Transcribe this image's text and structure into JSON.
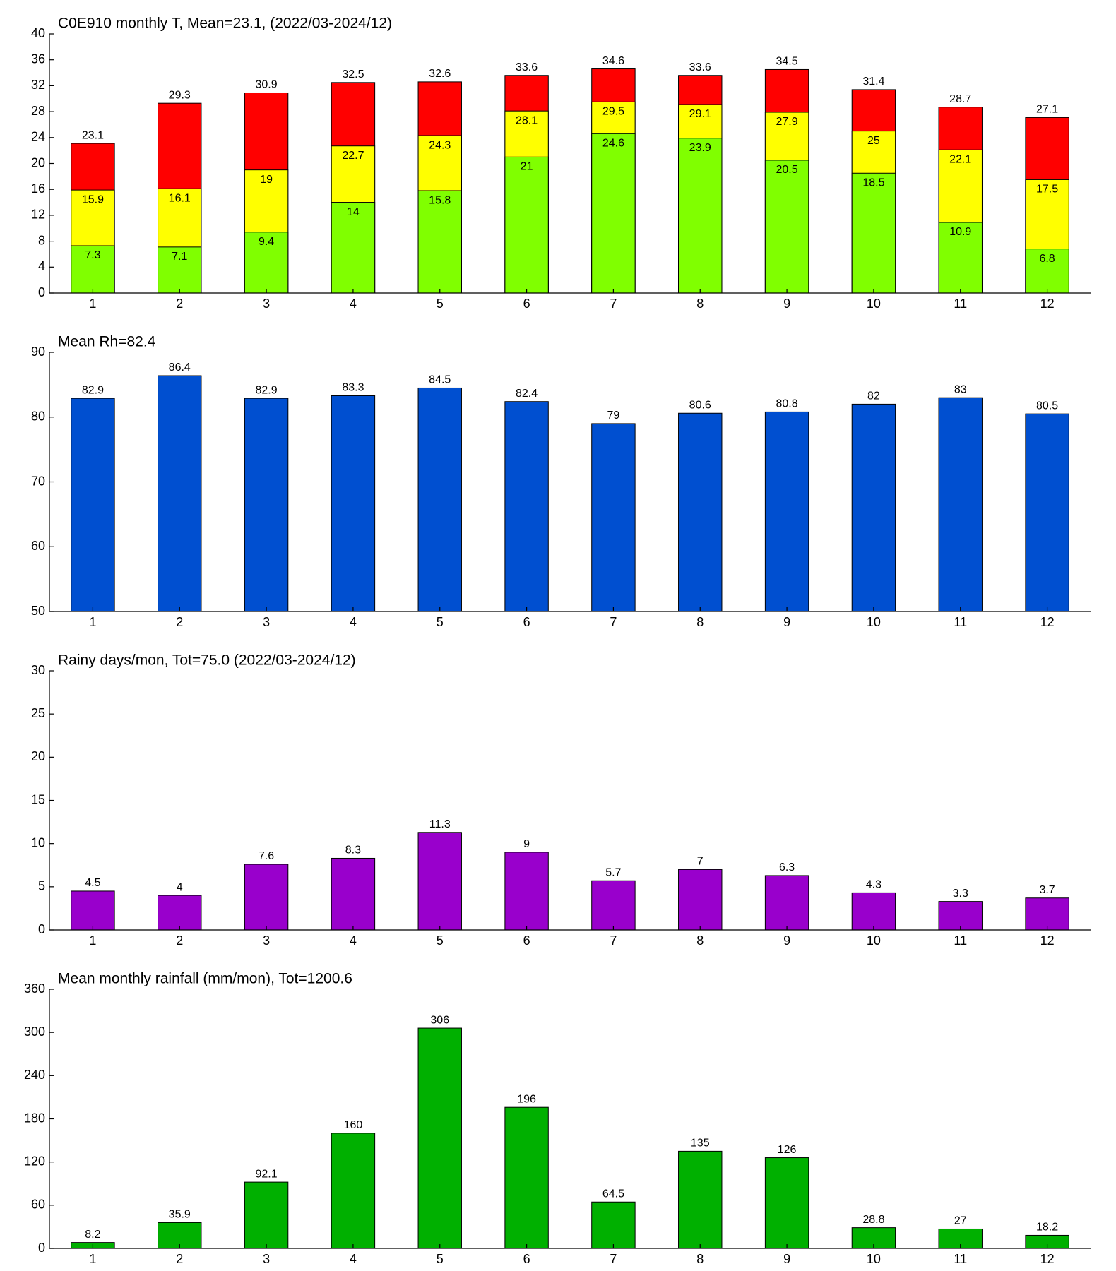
{
  "chart_data": [
    {
      "type": "bar",
      "title": "C0E910 monthly T, Mean=23.1, (2022/03-2024/12)",
      "categories": [
        "1",
        "2",
        "3",
        "4",
        "5",
        "6",
        "7",
        "8",
        "9",
        "10",
        "11",
        "12"
      ],
      "series": [
        {
          "color": "#ff0000",
          "values": [
            23.1,
            29.3,
            30.9,
            32.5,
            32.6,
            33.6,
            34.6,
            33.6,
            34.5,
            31.4,
            28.7,
            27.1
          ]
        },
        {
          "color": "#ffff00",
          "values": [
            15.9,
            16.1,
            19,
            22.7,
            24.3,
            28.1,
            29.5,
            29.1,
            27.9,
            25,
            22.1,
            17.5
          ]
        },
        {
          "color": "#80ff00",
          "values": [
            7.3,
            7.1,
            9.4,
            14,
            15.8,
            21,
            24.6,
            23.9,
            20.5,
            18.5,
            10.9,
            6.8
          ]
        }
      ],
      "ylim": [
        0,
        40
      ],
      "yticks": [
        0,
        4,
        8,
        12,
        16,
        20,
        24,
        28,
        32,
        36,
        40
      ]
    },
    {
      "type": "bar",
      "title": "Mean Rh=82.4",
      "categories": [
        "1",
        "2",
        "3",
        "4",
        "5",
        "6",
        "7",
        "8",
        "9",
        "10",
        "11",
        "12"
      ],
      "values": [
        82.9,
        86.4,
        82.9,
        83.3,
        84.5,
        82.4,
        79,
        80.6,
        80.8,
        82,
        83,
        80.5
      ],
      "color": "#004fd0",
      "ylim": [
        50,
        90
      ],
      "yticks": [
        50,
        60,
        70,
        80,
        90
      ]
    },
    {
      "type": "bar",
      "title": "Rainy days/mon, Tot=75.0 (2022/03-2024/12)",
      "categories": [
        "1",
        "2",
        "3",
        "4",
        "5",
        "6",
        "7",
        "8",
        "9",
        "10",
        "11",
        "12"
      ],
      "values": [
        4.5,
        4,
        7.6,
        8.3,
        11.3,
        9,
        5.7,
        7,
        6.3,
        4.3,
        3.3,
        3.7
      ],
      "color": "#9900cc",
      "ylim": [
        0,
        30
      ],
      "yticks": [
        0,
        5,
        10,
        15,
        20,
        25,
        30
      ]
    },
    {
      "type": "bar",
      "title": "Mean monthly rainfall (mm/mon), Tot=1200.6",
      "categories": [
        "1",
        "2",
        "3",
        "4",
        "5",
        "6",
        "7",
        "8",
        "9",
        "10",
        "11",
        "12"
      ],
      "values": [
        8.2,
        35.9,
        92.1,
        160,
        306,
        196,
        64.5,
        135,
        126,
        28.8,
        27,
        18.2
      ],
      "color": "#00b000",
      "ylim": [
        0,
        360
      ],
      "yticks": [
        0,
        60,
        120,
        180,
        240,
        300,
        360
      ]
    }
  ]
}
